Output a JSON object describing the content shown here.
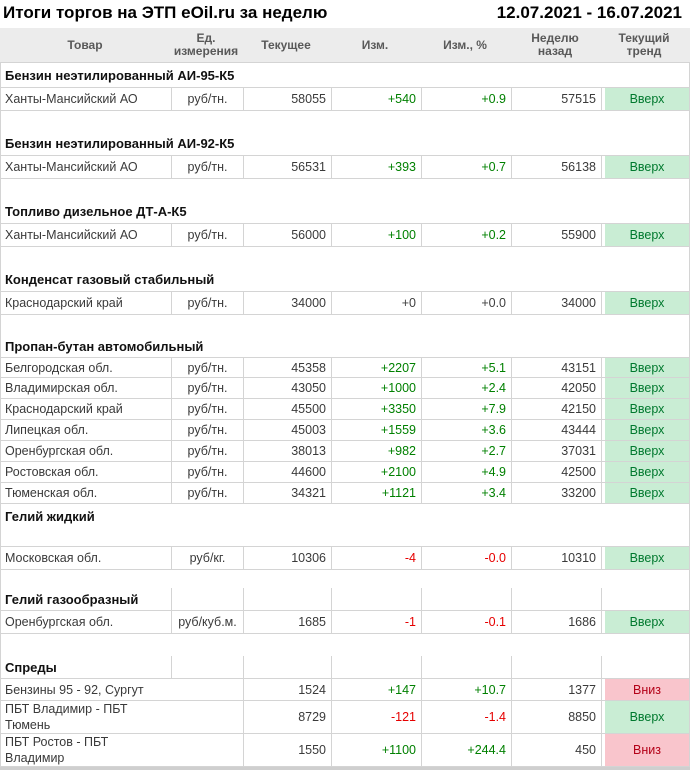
{
  "title": {
    "left": "Итоги торгов на ЭТП eOil.ru за неделю",
    "right": "12.07.2021 - 16.07.2021"
  },
  "columns": [
    "Товар",
    "Ед. измерения",
    "Текущее",
    "Изм.",
    "Изм., %",
    "Неделю назад",
    "Текущий тренд"
  ],
  "colors": {
    "positive_change": "#008000",
    "negative_change": "#e60000",
    "neutral_change": "#3f3f3f",
    "trend_up_bg": "#c9edd4",
    "trend_up_text": "#00792e",
    "trend_down_bg": "#f9c5cc",
    "trend_down_text": "#b30017",
    "column_header_bg": "#ececec",
    "grid_border": "#d4d4d4"
  },
  "sections": [
    {
      "name": "Бензин неэтилированный АИ-95-К5",
      "style": "default",
      "rows": [
        {
          "product": "Ханты-Мансийский АО",
          "unit": "руб/тн.",
          "current": "58055",
          "change": "+540",
          "change_pct": "+0.9",
          "week_ago": "57515",
          "change_sign": "pos",
          "trend": "Вверх",
          "trend_dir": "up"
        }
      ]
    },
    {
      "name": "Бензин неэтилированный АИ-92-К5",
      "style": "default",
      "rows": [
        {
          "product": "Ханты-Мансийский АО",
          "unit": "руб/тн.",
          "current": "56531",
          "change": "+393",
          "change_pct": "+0.7",
          "week_ago": "56138",
          "change_sign": "pos",
          "trend": "Вверх",
          "trend_dir": "up"
        }
      ]
    },
    {
      "name": "Топливо дизельное ДТ-А-К5",
      "style": "default",
      "rows": [
        {
          "product": "Ханты-Мансийский АО",
          "unit": "руб/тн.",
          "current": "56000",
          "change": "+100",
          "change_pct": "+0.2",
          "week_ago": "55900",
          "change_sign": "pos",
          "trend": "Вверх",
          "trend_dir": "up"
        }
      ]
    },
    {
      "name": "Конденсат газовый стабильный",
      "style": "default",
      "rows": [
        {
          "product": "Краснодарский край",
          "unit": "руб/тн.",
          "current": "34000",
          "change": "+0",
          "change_pct": "+0.0",
          "week_ago": "34000",
          "change_sign": "zero",
          "trend": "Вверх",
          "trend_dir": "up"
        }
      ]
    },
    {
      "name": "Пропан-бутан автомобильный",
      "style": "compact",
      "rows": [
        {
          "product": "Белгородская обл.",
          "unit": "руб/тн.",
          "current": "45358",
          "change": "+2207",
          "change_pct": "+5.1",
          "week_ago": "43151",
          "change_sign": "pos",
          "trend": "Вверх",
          "trend_dir": "up"
        },
        {
          "product": "Владимирская обл.",
          "unit": "руб/тн.",
          "current": "43050",
          "change": "+1000",
          "change_pct": "+2.4",
          "week_ago": "42050",
          "change_sign": "pos",
          "trend": "Вверх",
          "trend_dir": "up"
        },
        {
          "product": "Краснодарский край",
          "unit": "руб/тн.",
          "current": "45500",
          "change": "+3350",
          "change_pct": "+7.9",
          "week_ago": "42150",
          "change_sign": "pos",
          "trend": "Вверх",
          "trend_dir": "up"
        },
        {
          "product": "Липецкая обл.",
          "unit": "руб/тн.",
          "current": "45003",
          "change": "+1559",
          "change_pct": "+3.6",
          "week_ago": "43444",
          "change_sign": "pos",
          "trend": "Вверх",
          "trend_dir": "up"
        },
        {
          "product": "Оренбургская обл.",
          "unit": "руб/тн.",
          "current": "38013",
          "change": "+982",
          "change_pct": "+2.7",
          "week_ago": "37031",
          "change_sign": "pos",
          "trend": "Вверх",
          "trend_dir": "up"
        },
        {
          "product": "Ростовская обл.",
          "unit": "руб/тн.",
          "current": "44600",
          "change": "+2100",
          "change_pct": "+4.9",
          "week_ago": "42500",
          "change_sign": "pos",
          "trend": "Вверх",
          "trend_dir": "up"
        },
        {
          "product": "Тюменская обл.",
          "unit": "руб/тн.",
          "current": "34321",
          "change": "+1121",
          "change_pct": "+3.4",
          "week_ago": "33200",
          "change_sign": "pos",
          "trend": "Вверх",
          "trend_dir": "up"
        }
      ]
    },
    {
      "name": "Гелий жидкий",
      "style": "tallhead",
      "rows": [
        {
          "product": "Московская обл.",
          "unit": "руб/кг.",
          "current": "10306",
          "change": "-4",
          "change_pct": "-0.0",
          "week_ago": "10310",
          "change_sign": "neg",
          "trend": "Вверх",
          "trend_dir": "up"
        }
      ]
    },
    {
      "name": "Гелий газообразный",
      "style": "bordered",
      "rows": [
        {
          "product": "Оренбургская обл.",
          "unit": "руб/куб.м.",
          "current": "1685",
          "change": "-1",
          "change_pct": "-0.1",
          "week_ago": "1686",
          "change_sign": "neg",
          "trend": "Вверх",
          "trend_dir": "up"
        }
      ]
    },
    {
      "name": "Спреды",
      "style": "spreads",
      "rows": [
        {
          "product": "Бензины 95 - 92, Сургут",
          "unit": "",
          "current": "1524",
          "change": "+147",
          "change_pct": "+10.7",
          "week_ago": "1377",
          "change_sign": "pos",
          "trend": "Вниз",
          "trend_dir": "down"
        },
        {
          "product": "ПБТ Владимир - ПБТ\nТюмень",
          "unit": "",
          "current": "8729",
          "change": "-121",
          "change_pct": "-1.4",
          "week_ago": "8850",
          "change_sign": "neg",
          "trend": "Вверх",
          "trend_dir": "up"
        },
        {
          "product": "ПБТ Ростов - ПБТ\nВладимир",
          "unit": "",
          "current": "1550",
          "change": "+1100",
          "change_pct": "+244.4",
          "week_ago": "450",
          "change_sign": "pos",
          "trend": "Вниз",
          "trend_dir": "down"
        }
      ]
    }
  ]
}
